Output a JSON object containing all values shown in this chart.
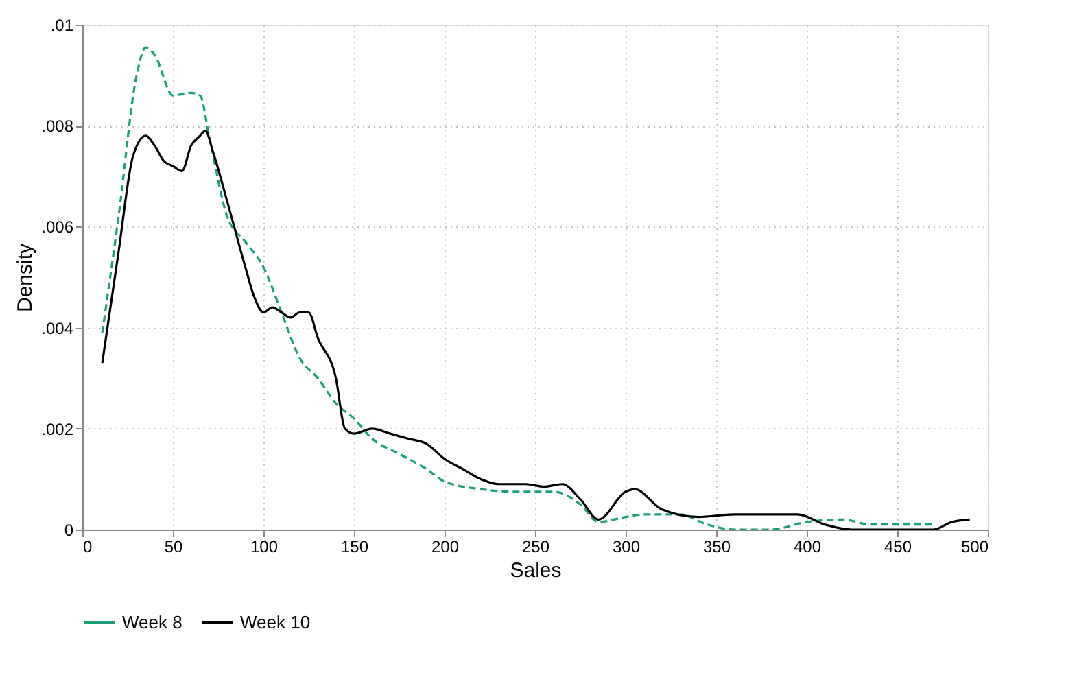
{
  "chart_data": {
    "type": "line",
    "xlabel": "Sales",
    "ylabel": "Density",
    "xlim": [
      0,
      500
    ],
    "xticks": [
      0,
      50,
      100,
      150,
      200,
      250,
      300,
      350,
      400,
      450,
      500
    ],
    "ylim": [
      0,
      0.01
    ],
    "yticks": [
      {
        "value": 0,
        "label": "0"
      },
      {
        "value": 0.002,
        "label": ".002"
      },
      {
        "value": 0.004,
        "label": ".004"
      },
      {
        "value": 0.006,
        "label": ".006"
      },
      {
        "value": 0.008,
        "label": ".008"
      },
      {
        "value": 0.01,
        "label": ".01"
      }
    ],
    "grid": true,
    "legend": "bottom",
    "marker": "none",
    "series": [
      {
        "name": "Week 8",
        "color": "#1b9e77",
        "line_style": "dashed",
        "x": [
          11,
          20,
          30,
          35,
          40,
          50,
          60,
          65,
          70,
          80,
          90,
          100,
          110,
          120,
          130,
          140,
          150,
          160,
          175,
          190,
          200,
          220,
          240,
          260,
          275,
          285,
          300,
          310,
          330,
          345,
          360,
          380,
          400,
          420,
          435,
          450,
          470
        ],
        "values": [
          0.0039,
          0.0062,
          0.009,
          0.00955,
          0.0094,
          0.0086,
          0.00865,
          0.0086,
          0.0078,
          0.0062,
          0.0057,
          0.0052,
          0.0043,
          0.0034,
          0.003,
          0.0025,
          0.0022,
          0.0018,
          0.0015,
          0.0012,
          0.00095,
          0.0008,
          0.00075,
          0.00075,
          0.0005,
          0.00015,
          0.00025,
          0.0003,
          0.0003,
          0.0001,
          0,
          0,
          0.00015,
          0.0002,
          0.0001,
          0.0001,
          0.0001
        ]
      },
      {
        "name": "Week 10",
        "color": "#000000",
        "line_style": "solid",
        "x": [
          11,
          20,
          28,
          35,
          40,
          45,
          50,
          55,
          60,
          65,
          68,
          72,
          80,
          90,
          95,
          100,
          105,
          110,
          115,
          120,
          125,
          130,
          140,
          145,
          150,
          160,
          170,
          180,
          190,
          200,
          210,
          220,
          230,
          245,
          255,
          265,
          275,
          285,
          300,
          305,
          320,
          340,
          360,
          380,
          395,
          410,
          425,
          470,
          480,
          490
        ],
        "values": [
          0.0033,
          0.0055,
          0.0074,
          0.0078,
          0.0076,
          0.0073,
          0.0072,
          0.0071,
          0.0076,
          0.0078,
          0.0079,
          0.0075,
          0.0065,
          0.0052,
          0.0046,
          0.0043,
          0.0044,
          0.0043,
          0.0042,
          0.0043,
          0.0043,
          0.0038,
          0.003,
          0.002,
          0.0019,
          0.002,
          0.0019,
          0.0018,
          0.0017,
          0.0014,
          0.0012,
          0.001,
          0.0009,
          0.0009,
          0.00085,
          0.0009,
          0.0006,
          0.0002,
          0.00075,
          0.0008,
          0.0004,
          0.00025,
          0.0003,
          0.0003,
          0.0003,
          0.0001,
          0,
          0,
          0.00015,
          0.0002
        ]
      }
    ]
  }
}
